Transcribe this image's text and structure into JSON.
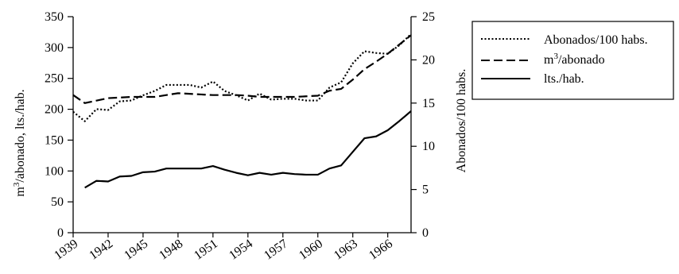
{
  "chart_data": {
    "type": "line",
    "title": "",
    "x": [
      1939,
      1940,
      1941,
      1942,
      1943,
      1944,
      1945,
      1946,
      1947,
      1948,
      1949,
      1950,
      1951,
      1952,
      1953,
      1954,
      1955,
      1956,
      1957,
      1958,
      1959,
      1960,
      1961,
      1962,
      1963,
      1964,
      1965,
      1966,
      1967,
      1968
    ],
    "x_ticks": [
      "1939",
      "1942",
      "1945",
      "1948",
      "1951",
      "1954",
      "1957",
      "1960",
      "1963",
      "1966"
    ],
    "y_left": {
      "label": "m³/abonado, lts./hab.",
      "label_main": "m",
      "label_sup": "3",
      "label_rest": "/abonado, lts./hab.",
      "range": [
        0,
        350
      ],
      "ticks": [
        "0",
        "50",
        "100",
        "150",
        "200",
        "250",
        "300",
        "350"
      ]
    },
    "y_right": {
      "label": "Abonados/100 habs.",
      "range": [
        0,
        25
      ],
      "ticks": [
        "0",
        "5",
        "10",
        "15",
        "20",
        "25"
      ]
    },
    "legend_placement": "top-right",
    "series": [
      {
        "name": "Abonados/100 habs.",
        "axis": "right",
        "style": "dotted",
        "values": [
          14.0,
          12.9,
          14.3,
          14.2,
          15.2,
          15.3,
          15.9,
          16.4,
          17.1,
          17.1,
          17.1,
          16.8,
          17.5,
          16.4,
          15.9,
          15.3,
          16.1,
          15.4,
          15.5,
          15.5,
          15.3,
          15.3,
          16.8,
          17.4,
          19.6,
          21.0,
          20.8,
          20.7,
          21.7,
          23.0
        ]
      },
      {
        "name": "m³/abonado",
        "legend_main": "m",
        "legend_sup": "3",
        "legend_rest": "/abonado",
        "axis": "left",
        "style": "dashed",
        "values": [
          223,
          210,
          214,
          218,
          219,
          220,
          220,
          220,
          223,
          226,
          225,
          224,
          223,
          223,
          223,
          222,
          220,
          220,
          220,
          220,
          221,
          222,
          230,
          233,
          248,
          265,
          277,
          290,
          305,
          320
        ]
      },
      {
        "name": "lts./hab.",
        "axis": "left",
        "style": "solid",
        "values": [
          null,
          73,
          84,
          83,
          91,
          92,
          98,
          99,
          104,
          104,
          104,
          104,
          108,
          102,
          97,
          93,
          97,
          94,
          97,
          95,
          94,
          94,
          104,
          109,
          131,
          153,
          156,
          166,
          181,
          197
        ]
      }
    ]
  }
}
